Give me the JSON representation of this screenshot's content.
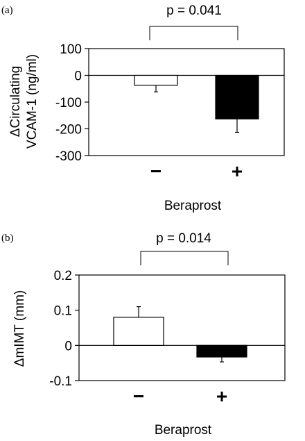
{
  "chart_data": [
    {
      "panel": "(a)",
      "type": "bar",
      "categories": [
        "−",
        "+"
      ],
      "values": [
        -37,
        -163
      ],
      "error_bars": [
        25,
        50
      ],
      "bar_colors": [
        "#ffffff",
        "#000000"
      ],
      "ylabel_line1": "ΔCirculating",
      "ylabel_line2": "VCAM-1 (ng/ml)",
      "xlabel": "Beraprost",
      "ylim": [
        -300,
        100
      ],
      "yticks": [
        100,
        0,
        -100,
        -200,
        -300
      ],
      "ytick_labels": [
        "100",
        "0",
        "-100",
        "-200",
        "-300"
      ],
      "annotation": "p = 0.041",
      "grid": false
    },
    {
      "panel": "(b)",
      "type": "bar",
      "categories": [
        "−",
        "+"
      ],
      "values": [
        0.08,
        -0.033
      ],
      "error_bars": [
        0.03,
        0.014
      ],
      "bar_colors": [
        "#ffffff",
        "#000000"
      ],
      "ylabel": "ΔmIMT (mm)",
      "xlabel": "Beraprost",
      "ylim": [
        -0.1,
        0.2
      ],
      "yticks": [
        0.2,
        0.1,
        0,
        -0.1
      ],
      "ytick_labels": [
        "0.2",
        "0.1",
        "0",
        "-0.1"
      ],
      "annotation": "p = 0.014",
      "grid": false
    }
  ]
}
